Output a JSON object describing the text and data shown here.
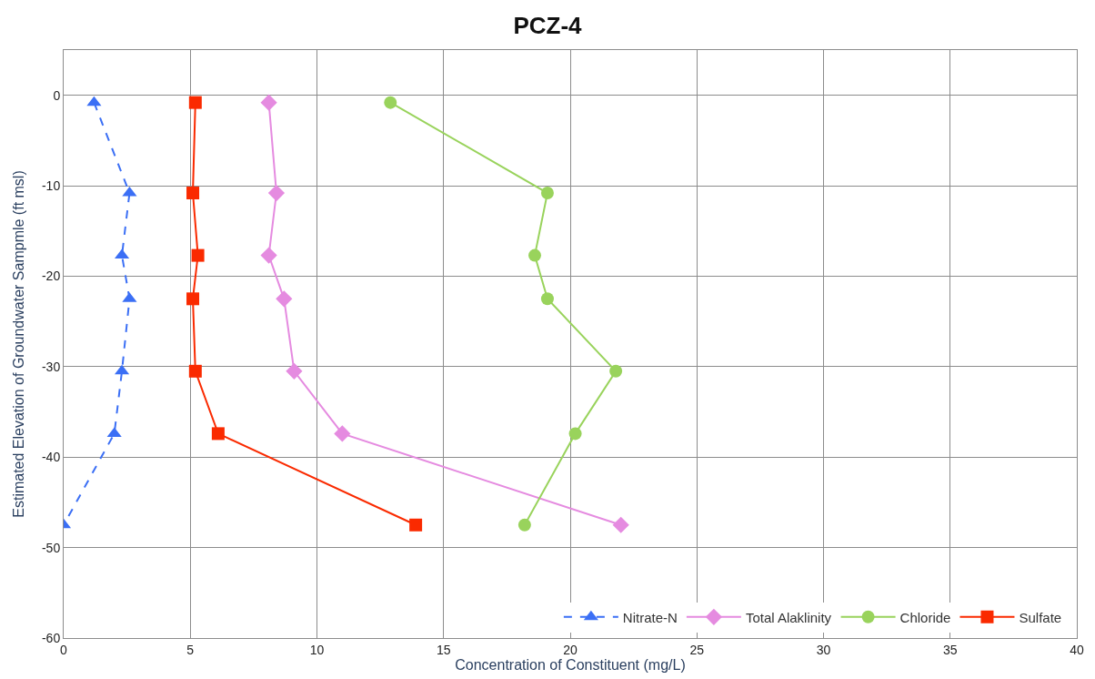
{
  "chart_data": {
    "type": "line",
    "title": "PCZ-4",
    "xlabel": "Concentration of Constituent (mg/L)",
    "ylabel": "Estimated Elevation of Groundwater Sampmle (ft msl)",
    "xlim": [
      0,
      40
    ],
    "xticks": [
      0,
      5,
      10,
      15,
      20,
      25,
      30,
      35,
      40
    ],
    "ylim": [
      -60,
      5
    ],
    "yticks": [
      -60,
      -50,
      -40,
      -30,
      -20,
      -10,
      0
    ],
    "grid": true,
    "legend": "bottom right",
    "series": [
      {
        "name": "Nitrate-N",
        "color": "#3b6ff5",
        "marker": "triangle",
        "line_style": "dashed",
        "x": [
          1.2,
          2.6,
          2.3,
          2.6,
          2.3,
          2.0,
          0
        ],
        "values": [
          -0.8,
          -10.8,
          -17.7,
          -22.5,
          -30.5,
          -37.4,
          -47.5
        ]
      },
      {
        "name": "Total Alaklinity",
        "color": "#e58be0",
        "marker": "diamond",
        "line_style": "solid",
        "x": [
          8.1,
          8.4,
          8.1,
          8.7,
          9.1,
          11.0,
          22.0
        ],
        "values": [
          -0.8,
          -10.8,
          -17.7,
          -22.5,
          -30.5,
          -37.4,
          -47.5
        ]
      },
      {
        "name": "Chloride",
        "color": "#99d35c",
        "marker": "circle",
        "line_style": "solid",
        "x": [
          12.9,
          19.1,
          18.6,
          19.1,
          21.8,
          20.2,
          18.2
        ],
        "values": [
          -0.8,
          -10.8,
          -17.7,
          -22.5,
          -30.5,
          -37.4,
          -47.5
        ]
      },
      {
        "name": "Sulfate",
        "color": "#fa2a00",
        "marker": "square",
        "line_style": "solid",
        "x": [
          5.2,
          5.1,
          5.3,
          5.1,
          5.2,
          6.1,
          13.9
        ],
        "values": [
          -0.8,
          -10.8,
          -17.7,
          -22.5,
          -30.5,
          -37.4,
          -47.5
        ]
      }
    ]
  }
}
